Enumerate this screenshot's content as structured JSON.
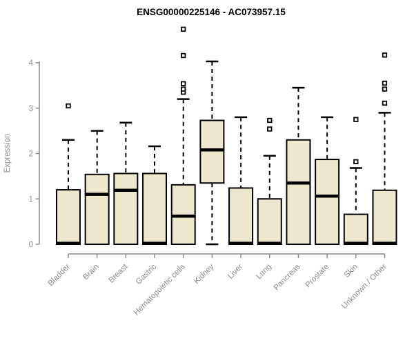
{
  "chart_data": {
    "type": "boxplot",
    "title": "ENSG00000225146 - AC073957.15",
    "ylabel": "Expression",
    "xlabel": "",
    "ylim": [
      0,
      4
    ],
    "yticks": [
      "0",
      "1",
      "2",
      "3",
      "4"
    ],
    "grid": false,
    "legend": "none",
    "categories": [
      "Bladder",
      "Brain",
      "Breast",
      "Gastric",
      "Hematopoietic cells",
      "Kidney",
      "Liver",
      "Lung",
      "Pancreas",
      "Prostate",
      "Skin",
      "Unknown / Other"
    ],
    "series": [
      {
        "label": "Bladder",
        "q1": 0,
        "median": 0.02,
        "q3": 1.2,
        "whisker_low": 0,
        "whisker_high": 2.3,
        "outliers": [
          3.05
        ]
      },
      {
        "label": "Brain",
        "q1": 0,
        "median": 1.1,
        "q3": 1.54,
        "whisker_low": 0,
        "whisker_high": 2.5,
        "outliers": []
      },
      {
        "label": "Breast",
        "q1": 0,
        "median": 1.19,
        "q3": 1.56,
        "whisker_low": 0,
        "whisker_high": 2.68,
        "outliers": []
      },
      {
        "label": "Gastric",
        "q1": 0,
        "median": 0.02,
        "q3": 1.56,
        "whisker_low": 0,
        "whisker_high": 2.16,
        "outliers": []
      },
      {
        "label": "Hematopoietic cells",
        "q1": 0,
        "median": 0.62,
        "q3": 1.31,
        "whisker_low": 0,
        "whisker_high": 3.2,
        "outliers": [
          3.35,
          3.42,
          3.54,
          4.16,
          4.74
        ]
      },
      {
        "label": "Kidney",
        "q1": 1.35,
        "median": 2.08,
        "q3": 2.73,
        "whisker_low": 0,
        "whisker_high": 4.03,
        "outliers": []
      },
      {
        "label": "Liver",
        "q1": 0,
        "median": 0.02,
        "q3": 1.24,
        "whisker_low": 0,
        "whisker_high": 2.8,
        "outliers": []
      },
      {
        "label": "Lung",
        "q1": 0,
        "median": 0.02,
        "q3": 1.0,
        "whisker_low": 0,
        "whisker_high": 1.95,
        "outliers": [
          2.54,
          2.73
        ]
      },
      {
        "label": "Pancreas",
        "q1": 0,
        "median": 1.35,
        "q3": 2.3,
        "whisker_low": 0,
        "whisker_high": 3.45,
        "outliers": []
      },
      {
        "label": "Prostate",
        "q1": 0,
        "median": 1.06,
        "q3": 1.87,
        "whisker_low": 0,
        "whisker_high": 2.8,
        "outliers": []
      },
      {
        "label": "Skin",
        "q1": 0,
        "median": 0.02,
        "q3": 0.66,
        "whisker_low": 0,
        "whisker_high": 1.68,
        "outliers": [
          1.82,
          2.75
        ]
      },
      {
        "label": "Unknown / Other",
        "q1": 0,
        "median": 0.02,
        "q3": 1.19,
        "whisker_low": 0,
        "whisker_high": 2.9,
        "outliers": [
          3.11,
          3.42,
          3.55,
          4.17
        ]
      }
    ],
    "colors": {
      "box_fill": "#ede8cd",
      "box_stroke": "#000000",
      "median": "#000000",
      "whisker": "#000000",
      "axis": "#8c8c8c",
      "tick_text": "#8c8c8c",
      "title_text": "#000000",
      "background": "#ffffff"
    }
  }
}
